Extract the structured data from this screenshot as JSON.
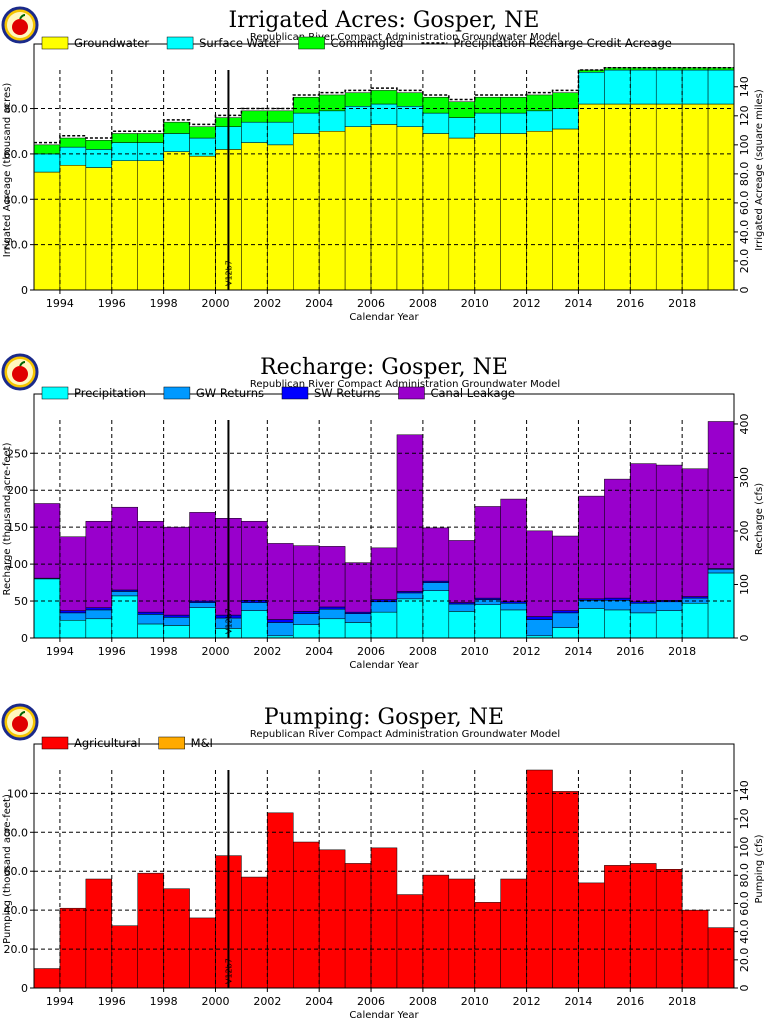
{
  "chart_data": [
    {
      "type": "bar",
      "stacked": true,
      "title": "Irrigated Acres: Gosper, NE",
      "subtitle": "Republican River Compact Administration Groundwater Model",
      "xlabel": "Calendar Year",
      "ylabel": "Irrigated Acreage (thousand acres)",
      "y2label": "Irrigated Acreage (square miles)",
      "ylim": [
        0,
        97
      ],
      "y2lim": [
        0,
        151.56
      ],
      "xlim": [
        1993,
        2020
      ],
      "yticks": [
        "0",
        "20.0",
        "40.0",
        "60.0",
        "80.0"
      ],
      "y2ticks": [
        "0",
        "20.0",
        "40.0",
        "60.0",
        "80.0",
        "100",
        "120",
        "140"
      ],
      "xticks": [
        "1994",
        "1996",
        "1998",
        "2000",
        "2002",
        "2004",
        "2006",
        "2008",
        "2010",
        "2012",
        "2014",
        "2016",
        "2018"
      ],
      "grid": true,
      "legend_position": "top",
      "marker": {
        "x": 2000.5,
        "label": "V12b7"
      },
      "categories": [
        1993,
        1994,
        1995,
        1996,
        1997,
        1998,
        1999,
        2000,
        2001,
        2002,
        2003,
        2004,
        2005,
        2006,
        2007,
        2008,
        2009,
        2010,
        2011,
        2012,
        2013,
        2014,
        2015,
        2016,
        2017,
        2018,
        2019
      ],
      "series": [
        {
          "name": "Groundwater",
          "color": "#ffff00",
          "values": [
            52,
            55,
            54,
            57,
            57,
            61,
            59,
            62,
            65,
            64,
            69,
            70,
            72,
            73,
            72,
            69,
            67,
            69,
            69,
            70,
            71,
            82,
            82,
            82,
            82,
            82,
            82
          ]
        },
        {
          "name": "Surface Water",
          "color": "#00ffff",
          "values": [
            8,
            8,
            8,
            8,
            8,
            8,
            8,
            10,
            9,
            10,
            9,
            9,
            9,
            9,
            9,
            9,
            9,
            9,
            9,
            9,
            9,
            14,
            15,
            15,
            15,
            15,
            15
          ]
        },
        {
          "name": "Commingled",
          "color": "#00ff00",
          "values": [
            4,
            4,
            4,
            4,
            4,
            5,
            5,
            4,
            5,
            5,
            7,
            7,
            6,
            6,
            6,
            7,
            7,
            7,
            7,
            7,
            7,
            1,
            1,
            1,
            1,
            1,
            1
          ]
        }
      ],
      "line_series": {
        "name": "Precipitation Recharge Credit Acreage",
        "style": "dashed",
        "values": [
          65,
          68,
          67,
          70,
          70,
          75,
          73,
          77,
          80,
          80,
          86,
          87,
          88,
          89,
          88,
          86,
          84,
          86,
          86,
          87,
          88,
          97,
          98,
          98,
          98,
          98,
          98
        ]
      }
    },
    {
      "type": "bar",
      "stacked": true,
      "title": "Recharge: Gosper, NE",
      "subtitle": "Republican River Compact Administration Groundwater Model",
      "xlabel": "Calendar Year",
      "ylabel": "Recharge (thousand acre-feet)",
      "y2label": "Recharge (cfs)",
      "ylim": [
        0,
        295
      ],
      "y2lim": [
        0,
        407.4
      ],
      "xlim": [
        1993,
        2020
      ],
      "yticks": [
        "0",
        "50",
        "100",
        "150",
        "200",
        "250"
      ],
      "y2ticks": [
        "0",
        "100",
        "200",
        "300",
        "400"
      ],
      "xticks": [
        "1994",
        "1996",
        "1998",
        "2000",
        "2002",
        "2004",
        "2006",
        "2008",
        "2010",
        "2012",
        "2014",
        "2016",
        "2018"
      ],
      "grid": true,
      "legend_position": "top",
      "marker": {
        "x": 2000.5,
        "label": "V12b7"
      },
      "categories": [
        1993,
        1994,
        1995,
        1996,
        1997,
        1998,
        1999,
        2000,
        2001,
        2002,
        2003,
        2004,
        2005,
        2006,
        2007,
        2008,
        2009,
        2010,
        2011,
        2012,
        2013,
        2014,
        2015,
        2016,
        2017,
        2018,
        2019
      ],
      "series": [
        {
          "name": "Precipitation",
          "color": "#00ffff",
          "values": [
            80,
            24,
            26,
            57,
            19,
            17,
            41,
            13,
            37,
            3,
            18,
            26,
            21,
            35,
            53,
            64,
            36,
            45,
            38,
            3,
            14,
            40,
            38,
            34,
            37,
            47,
            88
          ]
        },
        {
          "name": "GW Returns",
          "color": "#0099ff",
          "values": [
            1,
            10,
            12,
            6,
            13,
            11,
            7,
            14,
            11,
            18,
            15,
            13,
            12,
            14,
            8,
            11,
            10,
            7,
            9,
            22,
            20,
            11,
            13,
            13,
            12,
            7,
            5
          ]
        },
        {
          "name": "SW Returns",
          "color": "#0000ff",
          "values": [
            0,
            3,
            3,
            2,
            3,
            3,
            2,
            4,
            3,
            4,
            3,
            3,
            2,
            3,
            2,
            2,
            2,
            2,
            2,
            4,
            3,
            2,
            3,
            2,
            2,
            2,
            1
          ]
        },
        {
          "name": "Canal Leakage",
          "color": "#9900cc",
          "values": [
            101,
            100,
            117,
            112,
            123,
            119,
            120,
            131,
            107,
            103,
            89,
            82,
            67,
            70,
            212,
            72,
            84,
            124,
            139,
            116,
            101,
            139,
            161,
            187,
            183,
            173,
            199
          ]
        }
      ]
    },
    {
      "type": "bar",
      "stacked": true,
      "title": "Pumping: Gosper, NE",
      "subtitle": "Republican River Compact Administration Groundwater Model",
      "xlabel": "Calendar Year",
      "ylabel": "Pumping (thousand acre-feet)",
      "y2label": "Pumping (cfs)",
      "ylim": [
        0,
        112
      ],
      "y2lim": [
        0,
        154.7
      ],
      "xlim": [
        1993,
        2020
      ],
      "yticks": [
        "0",
        "20.0",
        "40.0",
        "60.0",
        "80.0",
        "100"
      ],
      "y2ticks": [
        "0",
        "20.0",
        "40.0",
        "60.0",
        "80.0",
        "100",
        "120",
        "140"
      ],
      "xticks": [
        "1994",
        "1996",
        "1998",
        "2000",
        "2002",
        "2004",
        "2006",
        "2008",
        "2010",
        "2012",
        "2014",
        "2016",
        "2018"
      ],
      "grid": true,
      "legend_position": "top",
      "marker": {
        "x": 2000.5,
        "label": "V12b7"
      },
      "categories": [
        1993,
        1994,
        1995,
        1996,
        1997,
        1998,
        1999,
        2000,
        2001,
        2002,
        2003,
        2004,
        2005,
        2006,
        2007,
        2008,
        2009,
        2010,
        2011,
        2012,
        2013,
        2014,
        2015,
        2016,
        2017,
        2018,
        2019
      ],
      "series": [
        {
          "name": "Agricultural",
          "color": "#ff0000",
          "values": [
            10,
            41,
            56,
            32,
            59,
            51,
            36,
            68,
            57,
            90,
            75,
            71,
            64,
            72,
            48,
            58,
            56,
            44,
            56,
            112,
            101,
            54,
            63,
            64,
            61,
            40,
            31
          ]
        },
        {
          "name": "M&I",
          "color": "#ffaa00",
          "values": [
            0,
            0,
            0,
            0,
            0,
            0,
            0,
            0,
            0,
            0,
            0,
            0,
            0,
            0,
            0,
            0,
            0,
            0,
            0,
            0,
            0,
            0,
            0,
            0,
            0,
            0,
            0
          ]
        }
      ]
    }
  ]
}
